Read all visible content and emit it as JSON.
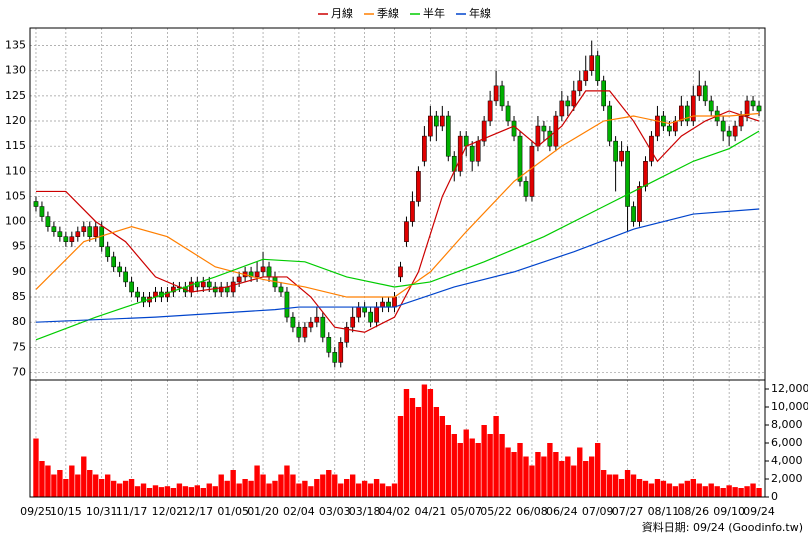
{
  "chart_data": [
    {
      "type": "candlestick",
      "up_color": "#e00000",
      "down_color": "#00b000",
      "ylim": [
        68.5,
        138.5
      ],
      "yticks": [
        70,
        75,
        80,
        85,
        90,
        95,
        100,
        105,
        110,
        115,
        120,
        125,
        130,
        135
      ],
      "grid": true,
      "legend": "top",
      "candles": [
        [
          104,
          105,
          102,
          103
        ],
        [
          103,
          104,
          100,
          101
        ],
        [
          101,
          102,
          98,
          99
        ],
        [
          99,
          100,
          97,
          98
        ],
        [
          98,
          99,
          96,
          97
        ],
        [
          97,
          98,
          95,
          96
        ],
        [
          96,
          98,
          95,
          97
        ],
        [
          97,
          99,
          96,
          98
        ],
        [
          98,
          100,
          97,
          99
        ],
        [
          99,
          100,
          96,
          97
        ],
        [
          97,
          100,
          96,
          99
        ],
        [
          99,
          100,
          94,
          95
        ],
        [
          95,
          96,
          92,
          93
        ],
        [
          93,
          94,
          90,
          91
        ],
        [
          91,
          92,
          89,
          90
        ],
        [
          90,
          91,
          87,
          88
        ],
        [
          88,
          89,
          85,
          86
        ],
        [
          86,
          87,
          84,
          85
        ],
        [
          85,
          86,
          83,
          84
        ],
        [
          84,
          86,
          83,
          85
        ],
        [
          85,
          87,
          84,
          86
        ],
        [
          86,
          87,
          84,
          85
        ],
        [
          85,
          87,
          84,
          86
        ],
        [
          86,
          88,
          85,
          87
        ],
        [
          87,
          88,
          86,
          87
        ],
        [
          87,
          88,
          85,
          86
        ],
        [
          86,
          89,
          85,
          88
        ],
        [
          88,
          89,
          86,
          87
        ],
        [
          87,
          89,
          86,
          88
        ],
        [
          88,
          89,
          86,
          87
        ],
        [
          87,
          88,
          85,
          86
        ],
        [
          86,
          88,
          85,
          87
        ],
        [
          87,
          88,
          85,
          86
        ],
        [
          86,
          89,
          85,
          88
        ],
        [
          88,
          90,
          87,
          89
        ],
        [
          89,
          91,
          88,
          90
        ],
        [
          90,
          91,
          88,
          89
        ],
        [
          89,
          92,
          88,
          90
        ],
        [
          90,
          94,
          89,
          91
        ],
        [
          91,
          92,
          88,
          89
        ],
        [
          89,
          90,
          86,
          87
        ],
        [
          87,
          88,
          85,
          86
        ],
        [
          86,
          87,
          80,
          81
        ],
        [
          81,
          82,
          78,
          79
        ],
        [
          79,
          80,
          76,
          77
        ],
        [
          77,
          80,
          76,
          79
        ],
        [
          79,
          81,
          78,
          80
        ],
        [
          80,
          83,
          79,
          81
        ],
        [
          81,
          82,
          76,
          77
        ],
        [
          77,
          78,
          73,
          74
        ],
        [
          74,
          75,
          71,
          72
        ],
        [
          72,
          77,
          71,
          76
        ],
        [
          76,
          80,
          75,
          79
        ],
        [
          79,
          83,
          78,
          81
        ],
        [
          81,
          84,
          80,
          83
        ],
        [
          83,
          84,
          81,
          82
        ],
        [
          82,
          83,
          79,
          80
        ],
        [
          80,
          84,
          79,
          83
        ],
        [
          83,
          85,
          82,
          84
        ],
        [
          84,
          85,
          82,
          83
        ],
        [
          83,
          86,
          82,
          85
        ],
        [
          89,
          92,
          88,
          91
        ],
        [
          96,
          101,
          95,
          100
        ],
        [
          100,
          106,
          99,
          104
        ],
        [
          104,
          111,
          103,
          110
        ],
        [
          112,
          119,
          111,
          117
        ],
        [
          117,
          123,
          116,
          121
        ],
        [
          121,
          122,
          116,
          119
        ],
        [
          119,
          123,
          118,
          121
        ],
        [
          121,
          122,
          112,
          113
        ],
        [
          113,
          114,
          108,
          110
        ],
        [
          110,
          118,
          109,
          117
        ],
        [
          117,
          118,
          113,
          115
        ],
        [
          115,
          116,
          110,
          112
        ],
        [
          112,
          117,
          111,
          116
        ],
        [
          116,
          121,
          115,
          120
        ],
        [
          120,
          126,
          119,
          124
        ],
        [
          124,
          130,
          123,
          127
        ],
        [
          127,
          128,
          122,
          123
        ],
        [
          123,
          124,
          119,
          120
        ],
        [
          120,
          121,
          116,
          117
        ],
        [
          117,
          118,
          107,
          108
        ],
        [
          108,
          109,
          104,
          105
        ],
        [
          105,
          116,
          104,
          115
        ],
        [
          115,
          121,
          114,
          119
        ],
        [
          119,
          120,
          116,
          118
        ],
        [
          118,
          119,
          114,
          115
        ],
        [
          115,
          122,
          114,
          121
        ],
        [
          121,
          126,
          120,
          124
        ],
        [
          124,
          125,
          121,
          123
        ],
        [
          123,
          128,
          122,
          126
        ],
        [
          126,
          130,
          125,
          128
        ],
        [
          128,
          133,
          127,
          130
        ],
        [
          130,
          136,
          129,
          133
        ],
        [
          133,
          134,
          127,
          128
        ],
        [
          128,
          129,
          122,
          123
        ],
        [
          123,
          124,
          115,
          116
        ],
        [
          116,
          117,
          106,
          112
        ],
        [
          112,
          116,
          111,
          114
        ],
        [
          114,
          115,
          98,
          103
        ],
        [
          103,
          104,
          99,
          100
        ],
        [
          100,
          108,
          99,
          107
        ],
        [
          107,
          113,
          106,
          112
        ],
        [
          112,
          118,
          111,
          117
        ],
        [
          117,
          123,
          116,
          121
        ],
        [
          121,
          122,
          118,
          119
        ],
        [
          119,
          120,
          117,
          118
        ],
        [
          118,
          121,
          117,
          120
        ],
        [
          120,
          125,
          119,
          123
        ],
        [
          123,
          124,
          119,
          120
        ],
        [
          120,
          127,
          119,
          125
        ],
        [
          125,
          130,
          124,
          127
        ],
        [
          127,
          128,
          123,
          124
        ],
        [
          124,
          125,
          121,
          122
        ],
        [
          122,
          123,
          119,
          120
        ],
        [
          120,
          121,
          116,
          118
        ],
        [
          118,
          119,
          115,
          117
        ],
        [
          117,
          120,
          116,
          119
        ],
        [
          119,
          122,
          118,
          121
        ],
        [
          121,
          125,
          120,
          124
        ],
        [
          124,
          125,
          122,
          123
        ],
        [
          123,
          124,
          121,
          122
        ]
      ],
      "series": [
        {
          "name": "月線",
          "color": "#cc0000",
          "x": [
            0,
            5,
            10,
            15,
            20,
            26,
            32,
            38,
            42,
            46,
            50,
            55,
            60,
            64,
            68,
            72,
            76,
            80,
            84,
            88,
            92,
            96,
            100,
            104,
            108,
            112,
            116,
            121
          ],
          "values": [
            106,
            106,
            100,
            96,
            89,
            86,
            87,
            89,
            89,
            85,
            79,
            78,
            81,
            90,
            105,
            115,
            117,
            119,
            115,
            119,
            126,
            126,
            120,
            112,
            117,
            120,
            122,
            120
          ]
        },
        {
          "name": "季線",
          "color": "#ff7f00",
          "x": [
            0,
            8,
            16,
            22,
            30,
            38,
            45,
            52,
            60,
            66,
            72,
            80,
            88,
            95,
            100,
            106,
            110,
            116,
            121
          ],
          "values": [
            86.5,
            96,
            99,
            97,
            91,
            88.5,
            87,
            85,
            85,
            90,
            98,
            108,
            115,
            120,
            121,
            119.5,
            121,
            121,
            121.5
          ]
        },
        {
          "name": "半年",
          "color": "#00cc00",
          "x": [
            0,
            10,
            20,
            30,
            38,
            45,
            52,
            60,
            66,
            75,
            85,
            95,
            100,
            105,
            110,
            116,
            121
          ],
          "values": [
            76.5,
            81,
            85,
            89,
            92.5,
            92,
            89,
            87,
            88,
            92,
            97,
            103,
            106,
            109,
            112,
            114.5,
            118
          ]
        },
        {
          "name": "年線",
          "color": "#0044cc",
          "x": [
            0,
            20,
            40,
            44,
            55,
            60,
            70,
            80,
            90,
            100,
            110,
            121
          ],
          "values": [
            80,
            81,
            82.5,
            83,
            83,
            83,
            87,
            90,
            94,
            98.5,
            101.5,
            102.5
          ]
        }
      ]
    },
    {
      "type": "bar",
      "color": "#ff0000",
      "note": "資料日期: 09/24 (Goodinfo.tw)",
      "ylim": [
        0,
        13000
      ],
      "yticks": [
        0,
        {
          "value": 2000,
          "label": "2,000"
        },
        {
          "value": 4000,
          "label": "4,000"
        },
        {
          "value": 6000,
          "label": "6,000"
        },
        {
          "value": 8000,
          "label": "8,000"
        },
        {
          "value": 10000,
          "label": "10,000"
        },
        {
          "value": 12000,
          "label": "12,000"
        }
      ],
      "xlim": [
        -1,
        122
      ],
      "xticks": [
        {
          "value": 0,
          "label": "09/25"
        },
        {
          "value": 5,
          "label": "10/15"
        },
        {
          "value": 11,
          "label": "10/31"
        },
        {
          "value": 16,
          "label": "11/17"
        },
        {
          "value": 22,
          "label": "12/02"
        },
        {
          "value": 27,
          "label": "12/17"
        },
        {
          "value": 33,
          "label": "01/05"
        },
        {
          "value": 38,
          "label": "01/20"
        },
        {
          "value": 44,
          "label": "02/04"
        },
        {
          "value": 50,
          "label": "03/03"
        },
        {
          "value": 55,
          "label": "03/18"
        },
        {
          "value": 60,
          "label": "04/02"
        },
        {
          "value": 66,
          "label": "04/21"
        },
        {
          "value": 72,
          "label": "05/07"
        },
        {
          "value": 77,
          "label": "05/22"
        },
        {
          "value": 83,
          "label": "06/08"
        },
        {
          "value": 88,
          "label": "06/24"
        },
        {
          "value": 94,
          "label": "07/09"
        },
        {
          "value": 99,
          "label": "07/27"
        },
        {
          "value": 105,
          "label": "08/11"
        },
        {
          "value": 110,
          "label": "08/26"
        },
        {
          "value": 116,
          "label": "09/10"
        },
        {
          "value": 121,
          "label": "09/24"
        }
      ],
      "values": [
        6500,
        4000,
        3500,
        2500,
        3000,
        2000,
        3500,
        2500,
        4500,
        3000,
        2500,
        2000,
        2500,
        1800,
        1500,
        1800,
        2000,
        1200,
        1500,
        1000,
        1300,
        1100,
        1200,
        1000,
        1500,
        1200,
        1100,
        1300,
        1000,
        1500,
        1200,
        2500,
        1800,
        3000,
        1500,
        2000,
        1800,
        3500,
        2500,
        1500,
        1800,
        2500,
        3500,
        2500,
        1500,
        1800,
        1200,
        2000,
        2500,
        3000,
        2500,
        1500,
        2000,
        2500,
        1500,
        1800,
        1500,
        2000,
        1500,
        1200,
        1500,
        9000,
        12000,
        11000,
        10000,
        12500,
        12000,
        10000,
        9000,
        8000,
        7000,
        6000,
        7500,
        6500,
        6000,
        8000,
        7000,
        9000,
        7000,
        5500,
        5000,
        6000,
        4500,
        3500,
        5000,
        4500,
        6000,
        5000,
        4000,
        4500,
        3500,
        5500,
        4000,
        4500,
        6000,
        3000,
        2500,
        2500,
        2000,
        3000,
        2500,
        2000,
        1800,
        1500,
        2000,
        1800,
        1500,
        1200,
        1500,
        1800,
        2000,
        1500,
        1200,
        1500,
        1200,
        1000,
        1300,
        1100,
        1000,
        1200,
        1500,
        1000
      ]
    }
  ]
}
